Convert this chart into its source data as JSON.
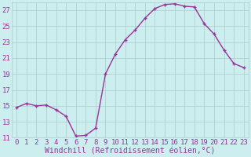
{
  "x": [
    0,
    1,
    2,
    3,
    4,
    5,
    6,
    7,
    8,
    9,
    10,
    11,
    12,
    13,
    14,
    15,
    16,
    17,
    18,
    19,
    20,
    21,
    22,
    23
  ],
  "y": [
    14.8,
    15.3,
    15.0,
    15.1,
    14.5,
    13.7,
    11.2,
    11.3,
    12.2,
    19.0,
    21.5,
    23.3,
    24.5,
    26.0,
    27.2,
    27.7,
    27.8,
    27.5,
    27.4,
    25.3,
    24.0,
    22.0,
    20.3,
    19.8
  ],
  "line_color": "#993399",
  "marker": "+",
  "bg_color": "#cceeee",
  "grid_color": "#aacccc",
  "xlabel": "Windchill (Refroidissement éolien,°C)",
  "ylim_min": 11,
  "ylim_max": 28,
  "yticks": [
    11,
    13,
    15,
    17,
    19,
    21,
    23,
    25,
    27
  ],
  "xticks": [
    0,
    1,
    2,
    3,
    4,
    5,
    6,
    7,
    8,
    9,
    10,
    11,
    12,
    13,
    14,
    15,
    16,
    17,
    18,
    19,
    20,
    21,
    22,
    23
  ],
  "font_color": "#993399",
  "tick_fontsize": 6.5,
  "xlabel_fontsize": 7,
  "linewidth": 1.0,
  "markersize": 3.5,
  "markeredgewidth": 1.0
}
